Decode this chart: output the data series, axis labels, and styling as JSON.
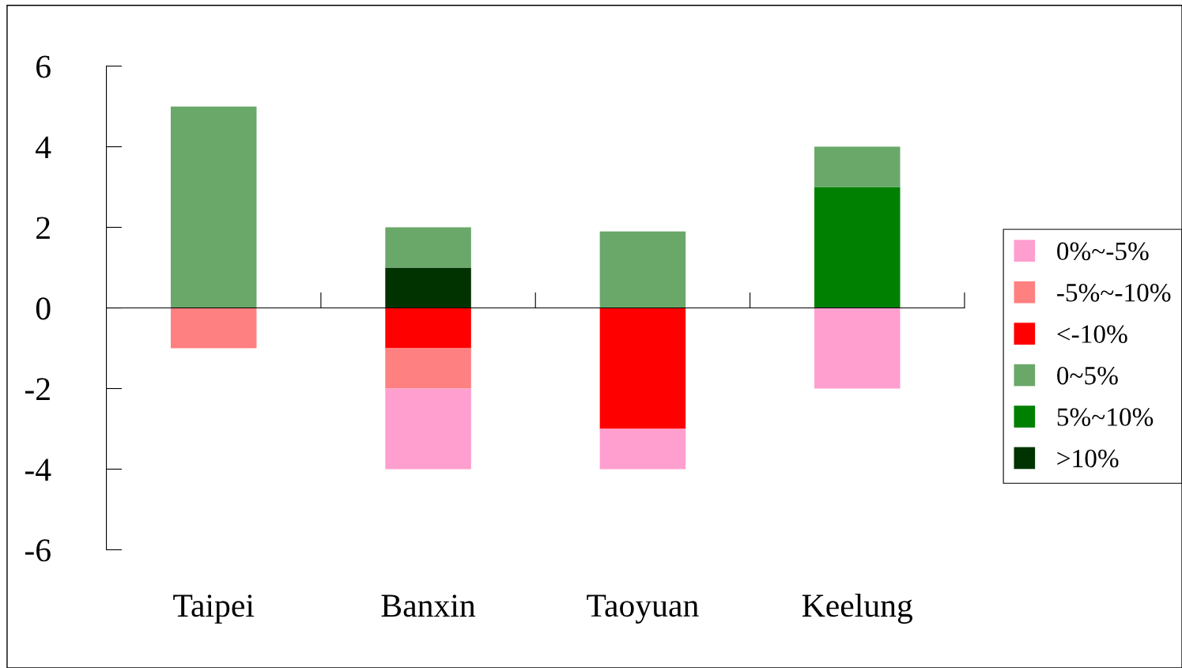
{
  "chart_data": {
    "type": "bar",
    "stacked": true,
    "categories": [
      "Taipei",
      "Banxin",
      "Taoyuan",
      "Keelung"
    ],
    "series": [
      {
        "name": "<-10%",
        "color": "#ff0000",
        "values": [
          null,
          -1,
          -3,
          null
        ]
      },
      {
        "name": "-5%~-10%",
        "color": "#ff8080",
        "values": [
          -1,
          -1,
          null,
          null
        ]
      },
      {
        "name": "0%~-5%",
        "color": "#ff9fcf",
        "values": [
          null,
          -2,
          -1,
          -2
        ]
      },
      {
        "name": ">10%",
        "color": "#003300",
        "values": [
          null,
          1,
          null,
          null
        ]
      },
      {
        "name": "5%~10%",
        "color": "#008000",
        "values": [
          null,
          null,
          null,
          3
        ]
      },
      {
        "name": "0~5%",
        "color": "#6aa86a",
        "values": [
          5,
          1,
          1.9,
          1
        ]
      }
    ],
    "ylim": [
      -6,
      6
    ],
    "yticks": [
      -6,
      -4,
      -2,
      0,
      2,
      4,
      6
    ],
    "legend": "right"
  }
}
